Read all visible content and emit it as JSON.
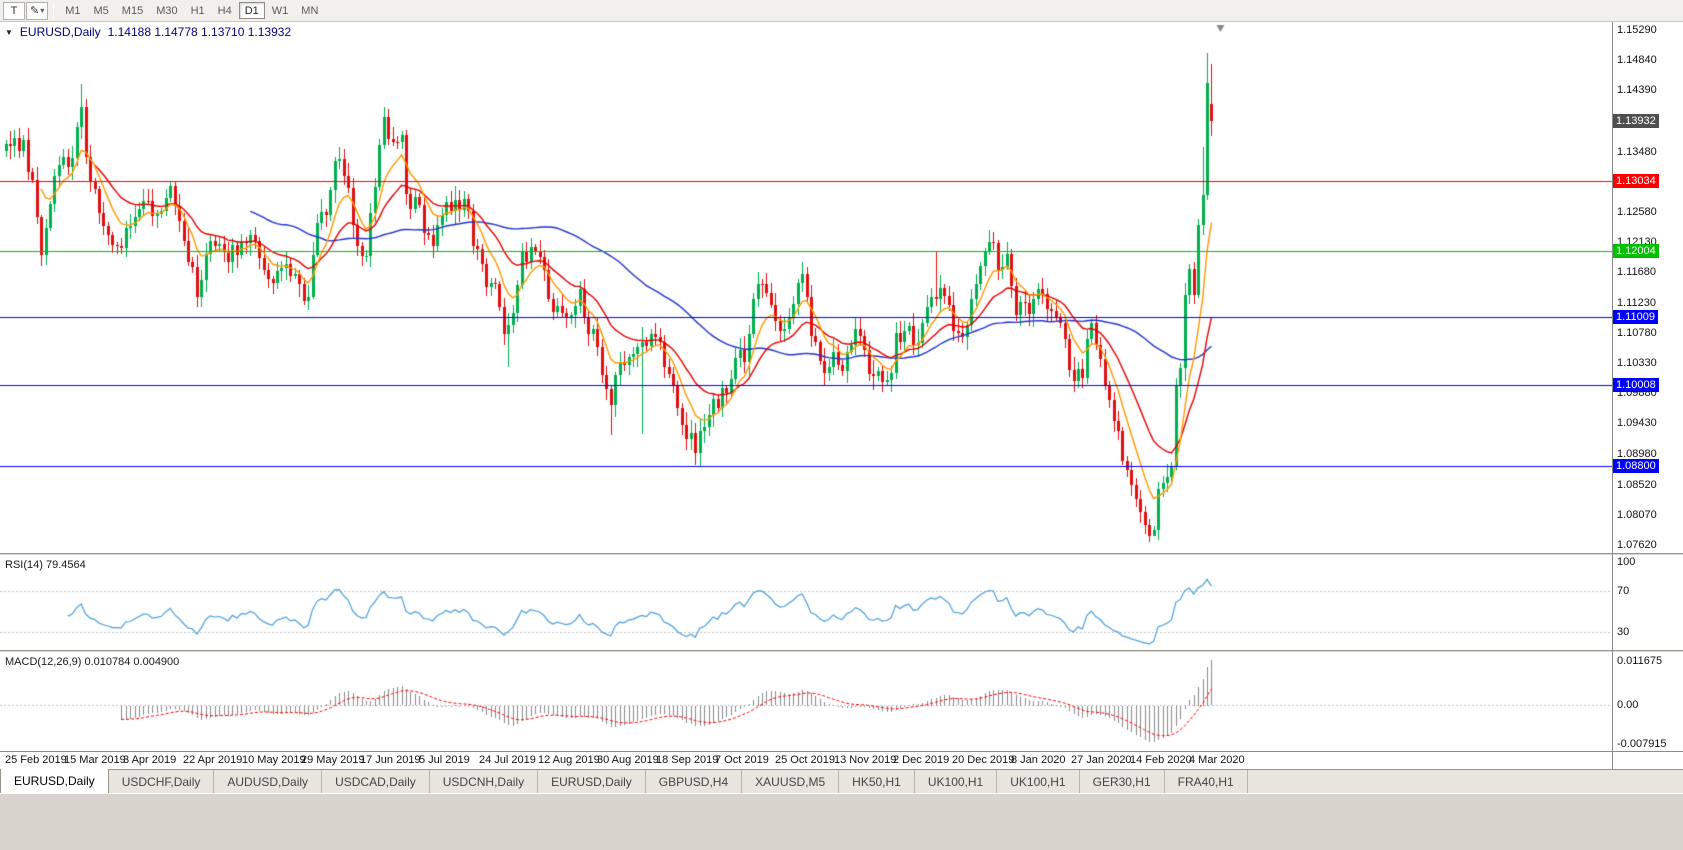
{
  "toolbar": {
    "tools": [
      {
        "name": "templates-button",
        "glyph": "T"
      },
      {
        "name": "drawing-tools-button",
        "glyph": "✎",
        "has_dropdown": true
      }
    ],
    "timeframes": [
      "M1",
      "M5",
      "M15",
      "M30",
      "H1",
      "H4",
      "D1",
      "W1",
      "MN"
    ],
    "active_timeframe": "D1"
  },
  "chart": {
    "menu_icon_glyph": "▼",
    "title": "EURUSD,Daily",
    "ohlc": "1.14188 1.14778 1.13710 1.13932"
  },
  "chart_data": {
    "type": "candlestick",
    "symbol": "EURUSD",
    "timeframe": "Daily",
    "current_bar": {
      "open": 1.14188,
      "high": 1.14778,
      "low": 1.1371,
      "close": 1.13932
    },
    "num_bars": 272,
    "bull_color": "#00B04F",
    "bear_color": "#E01010",
    "y_scale": {
      "top_value": 1.1529,
      "bottom_value": 1.0762,
      "ticks": [
        "1.15290",
        "1.14840",
        "1.14390",
        "1.13930",
        "1.13480",
        "1.13030",
        "1.12580",
        "1.12130",
        "1.11680",
        "1.11230",
        "1.10780",
        "1.10330",
        "1.09880",
        "1.09430",
        "1.08980",
        "1.08520",
        "1.08070",
        "1.07620"
      ]
    },
    "price_marker": {
      "label": "1.13932",
      "value": 1.13932,
      "bg": "#4F4F4F"
    },
    "horizontal_lines": [
      {
        "value": 1.13034,
        "label": "1.13034",
        "color": "#FF0000"
      },
      {
        "value": 1.12004,
        "label": "1.12004",
        "color": "#00C000"
      },
      {
        "value": 1.11009,
        "label": "1.11009",
        "color": "#0000FF"
      },
      {
        "value": 1.10008,
        "label": "1.10008",
        "color": "#0000FF"
      },
      {
        "value": 1.088,
        "label": "1.08800",
        "color": "#0000FF"
      }
    ],
    "moving_averages": [
      {
        "method": "sma",
        "period": 55,
        "color": "#2233CC"
      },
      {
        "method": "ema",
        "period": 20,
        "color": "#E60000"
      },
      {
        "method": "ema",
        "period": 8,
        "color": "#FF9900"
      }
    ],
    "x_labels": [
      "25 Feb 2019",
      "15 Mar 2019",
      "3 Apr 2019",
      "22 Apr 2019",
      "10 May 2019",
      "29 May 2019",
      "17 Jun 2019",
      "5 Jul 2019",
      "24 Jul 2019",
      "12 Aug 2019",
      "30 Aug 2019",
      "18 Sep 2019",
      "7 Oct 2019",
      "25 Oct 2019",
      "13 Nov 2019",
      "2 Dec 2019",
      "20 Dec 2019",
      "8 Jan 2020",
      "27 Jan 2020",
      "14 Feb 2020",
      "4 Mar 2020"
    ],
    "anchors": [
      [
        0,
        1.1359
      ],
      [
        2,
        1.1368
      ],
      [
        4,
        1.1365
      ],
      [
        6,
        1.1306
      ],
      [
        8,
        1.1194
      ],
      [
        9,
        1.1234
      ],
      [
        12,
        1.1328
      ],
      [
        14,
        1.1325
      ],
      [
        17,
        1.1415
      ],
      [
        19,
        1.1303
      ],
      [
        23,
        1.1224
      ],
      [
        26,
        1.1204
      ],
      [
        29,
        1.125
      ],
      [
        32,
        1.1274
      ],
      [
        35,
        1.126
      ],
      [
        37,
        1.1296
      ],
      [
        40,
        1.1215
      ],
      [
        43,
        1.1131
      ],
      [
        46,
        1.1215
      ],
      [
        49,
        1.12
      ],
      [
        52,
        1.1194
      ],
      [
        55,
        1.1224
      ],
      [
        59,
        1.1158
      ],
      [
        61,
        1.117
      ],
      [
        63,
        1.1181
      ],
      [
        66,
        1.115
      ],
      [
        68,
        1.1132
      ],
      [
        70,
        1.1241
      ],
      [
        72,
        1.1253
      ],
      [
        74,
        1.1334
      ],
      [
        76,
        1.1312
      ],
      [
        79,
        1.1207
      ],
      [
        81,
        1.1193
      ],
      [
        83,
        1.1295
      ],
      [
        85,
        1.1399
      ],
      [
        86,
        1.1366
      ],
      [
        89,
        1.1373
      ],
      [
        90,
        1.1285
      ],
      [
        92,
        1.128
      ],
      [
        94,
        1.1226
      ],
      [
        96,
        1.1208
      ],
      [
        98,
        1.1253
      ],
      [
        100,
        1.1259
      ],
      [
        103,
        1.1277
      ],
      [
        105,
        1.1208
      ],
      [
        108,
        1.1146
      ],
      [
        110,
        1.115
      ],
      [
        112,
        1.1076
      ],
      [
        114,
        1.1108
      ],
      [
        116,
        1.12
      ],
      [
        119,
        1.1199
      ],
      [
        121,
        1.1171
      ],
      [
        123,
        1.1109
      ],
      [
        126,
        1.11
      ],
      [
        129,
        1.1144
      ],
      [
        130,
        1.1101
      ],
      [
        133,
        1.1057
      ],
      [
        136,
        1.0971
      ],
      [
        138,
        1.1034
      ],
      [
        141,
        1.1046
      ],
      [
        143,
        1.1064
      ],
      [
        146,
        1.1072
      ],
      [
        149,
        1.1017
      ],
      [
        152,
        1.0941
      ],
      [
        155,
        1.0899
      ],
      [
        156,
        1.0932
      ],
      [
        159,
        1.0979
      ],
      [
        162,
        1.0989
      ],
      [
        164,
        1.104
      ],
      [
        166,
        1.1034
      ],
      [
        169,
        1.1151
      ],
      [
        170,
        1.115
      ],
      [
        172,
        1.112
      ],
      [
        174,
        1.108
      ],
      [
        176,
        1.1102
      ],
      [
        178,
        1.1152
      ],
      [
        179,
        1.1166
      ],
      [
        181,
        1.1074
      ],
      [
        184,
        1.1018
      ],
      [
        186,
        1.105
      ],
      [
        188,
        1.1021
      ],
      [
        190,
        1.106
      ],
      [
        192,
        1.1074
      ],
      [
        195,
        1.1013
      ],
      [
        197,
        1.1005
      ],
      [
        199,
        1.1018
      ],
      [
        200,
        1.1078
      ],
      [
        202,
        1.108
      ],
      [
        204,
        1.106
      ],
      [
        206,
        1.1093
      ],
      [
        208,
        1.1132
      ],
      [
        210,
        1.1145
      ],
      [
        212,
        1.112
      ],
      [
        214,
        1.1078
      ],
      [
        216,
        1.109
      ],
      [
        219,
        1.1177
      ],
      [
        221,
        1.1213
      ],
      [
        223,
        1.1172
      ],
      [
        225,
        1.1196
      ],
      [
        227,
        1.1105
      ],
      [
        229,
        1.1122
      ],
      [
        231,
        1.1128
      ],
      [
        233,
        1.1136
      ],
      [
        235,
        1.111
      ],
      [
        237,
        1.1093
      ],
      [
        239,
        1.1023
      ],
      [
        242,
        1.101
      ],
      [
        244,
        1.1093
      ],
      [
        245,
        1.106
      ],
      [
        247,
        1.1
      ],
      [
        249,
        1.0946
      ],
      [
        252,
        1.0873
      ],
      [
        254,
        1.0831
      ],
      [
        256,
        1.0792
      ],
      [
        258,
        1.0785
      ],
      [
        259,
        1.0846
      ],
      [
        260,
        1.0854
      ],
      [
        262,
        1.088
      ],
      [
        263,
        1.0999
      ],
      [
        264,
        1.1026
      ],
      [
        265,
        1.1134
      ],
      [
        266,
        1.1173
      ],
      [
        267,
        1.1134
      ],
      [
        268,
        1.1239
      ],
      [
        269,
        1.1284
      ],
      [
        270,
        1.145
      ],
      [
        271,
        1.13932
      ]
    ],
    "wick_overrides": [
      {
        "d": 8,
        "l": 1.1177
      },
      {
        "d": 17,
        "h": 1.1448
      },
      {
        "d": 43,
        "l": 1.1117
      },
      {
        "d": 86,
        "h": 1.1412
      },
      {
        "d": 113,
        "l": 1.1027
      },
      {
        "d": 136,
        "l": 1.0926
      },
      {
        "d": 143,
        "l": 1.0927,
        "h": 1.1087
      },
      {
        "d": 156,
        "l": 1.0879
      },
      {
        "d": 209,
        "h": 1.1199
      },
      {
        "d": 258,
        "l": 1.0778
      },
      {
        "d": 269,
        "h": 1.1355
      },
      {
        "d": 270,
        "h": 1.1495
      },
      {
        "d": 271,
        "o": 1.14188,
        "h": 1.14778,
        "l": 1.1371,
        "c": 1.13932
      }
    ],
    "indicators": {
      "rsi": {
        "label": "RSI(14) 79.4564",
        "period": 14,
        "value": "79.4564",
        "levels": [
          "100",
          "70",
          "30"
        ],
        "line_color": "#4A9FD8"
      },
      "macd": {
        "label": "MACD(12,26,9) 0.010784 0.004900",
        "fast": 12,
        "slow": 26,
        "signal": 9,
        "values": "0.010784 0.004900",
        "scale_labels": [
          "0.011675",
          "0.00",
          "-0.007915"
        ],
        "hist_color": "#8A8A8A",
        "signal_color": "#FF0000"
      }
    }
  },
  "bottom_tabs": {
    "active_index": 0,
    "items": [
      "EURUSD,Daily",
      "USDCHF,Daily",
      "AUDUSD,Daily",
      "USDCAD,Daily",
      "USDCNH,Daily",
      "EURUSD,Daily",
      "GBPUSD,H4",
      "XAUUSD,M5",
      "HK50,H1",
      "UK100,H1",
      "UK100,H1",
      "GER30,H1",
      "FRA40,H1"
    ]
  }
}
